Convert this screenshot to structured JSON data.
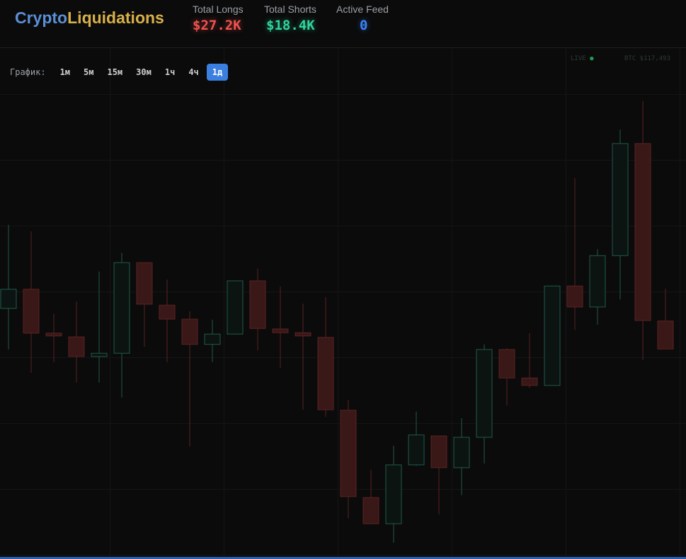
{
  "header": {
    "brand_a": "Crypto",
    "brand_b": "Liquidations",
    "stats": [
      {
        "label": "Total Longs",
        "value": "$27.2K"
      },
      {
        "label": "Total Shorts",
        "value": "$18.4K"
      },
      {
        "label": "Active Feed",
        "value": "0"
      }
    ]
  },
  "toolbar": {
    "label": "График:",
    "buttons": [
      "1м",
      "5м",
      "15м",
      "30м",
      "1ч",
      "4ч",
      "1д"
    ],
    "active": 6
  },
  "status": {
    "live": "LIVE",
    "price": "BTC $117,493"
  },
  "chart_data": {
    "type": "candlestick",
    "ylim": [
      0,
      100
    ],
    "up_color": "#1f5a4a",
    "down_color": "#5a2222",
    "open": [
      52.9,
      57.0,
      47.6,
      46.8,
      42.6,
      43.3,
      62.7,
      53.6,
      50.6,
      45.2,
      47.4,
      58.8,
      48.5,
      47.7,
      46.7,
      31.1,
      12.4,
      6.8,
      19.4,
      25.6,
      18.8,
      25.3,
      44.1,
      38.0,
      36.4,
      57.7,
      53.2,
      64.2,
      88.2,
      50.2
    ],
    "high": [
      70.8,
      69.4,
      51.7,
      54.4,
      60.8,
      64.8,
      62.7,
      59.1,
      52.3,
      50.5,
      58.8,
      61.4,
      57.6,
      53.9,
      55.3,
      33.3,
      18.3,
      23.5,
      30.8,
      25.6,
      29.4,
      45.2,
      44.4,
      47.6,
      57.7,
      80.8,
      65.6,
      91.2,
      97.3,
      57.1
    ],
    "low": [
      44.1,
      39.1,
      41.4,
      37.0,
      37.0,
      33.8,
      44.7,
      41.4,
      23.3,
      41.4,
      47.4,
      43.9,
      40.2,
      31.2,
      29.7,
      8.0,
      6.8,
      2.7,
      19.2,
      8.8,
      12.9,
      19.7,
      32.1,
      35.9,
      36.4,
      48.3,
      49.4,
      54.8,
      41.8,
      44.2
    ],
    "close": [
      57.0,
      47.6,
      47.0,
      42.6,
      43.3,
      62.7,
      53.8,
      50.6,
      45.2,
      47.4,
      58.8,
      48.6,
      47.7,
      47.0,
      31.2,
      12.6,
      6.8,
      19.4,
      25.8,
      18.8,
      25.3,
      44.1,
      38.0,
      36.4,
      57.7,
      53.2,
      64.2,
      88.2,
      50.3,
      44.2
    ]
  }
}
